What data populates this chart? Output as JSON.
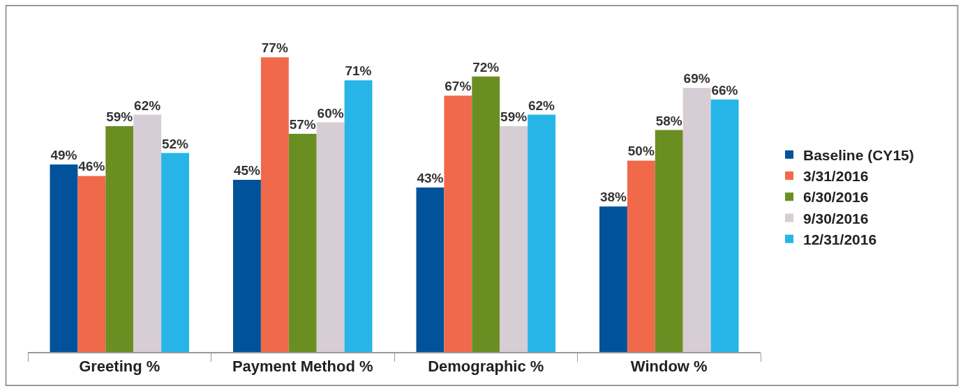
{
  "chart_data": {
    "type": "bar",
    "categories": [
      "Greeting %",
      "Payment Method %",
      "Demographic %",
      "Window %"
    ],
    "series": [
      {
        "name": "Baseline (CY15)",
        "color": "#00529b",
        "values": [
          49,
          45,
          43,
          38
        ],
        "value_labels": [
          "49%",
          "45%",
          "43%",
          "38%"
        ]
      },
      {
        "name": "3/31/2016",
        "color": "#f0694a",
        "values": [
          46,
          77,
          67,
          50
        ],
        "value_labels": [
          "46%",
          "77%",
          "67%",
          "50%"
        ]
      },
      {
        "name": "6/30/2016",
        "color": "#6b8e23",
        "values": [
          59,
          57,
          72,
          58
        ],
        "value_labels": [
          "59%",
          "57%",
          "72%",
          "58%"
        ]
      },
      {
        "name": "9/30/2016",
        "color": "#d7cdd4",
        "values": [
          62,
          60,
          59,
          69
        ],
        "value_labels": [
          "62%",
          "60%",
          "59%",
          "69%"
        ]
      },
      {
        "name": "12/31/2016",
        "color": "#27b5e8",
        "values": [
          52,
          71,
          62,
          66
        ],
        "value_labels": [
          "52%",
          "71%",
          "62%",
          "66%"
        ]
      }
    ],
    "legend": "right",
    "tick_labels": "x"
  }
}
